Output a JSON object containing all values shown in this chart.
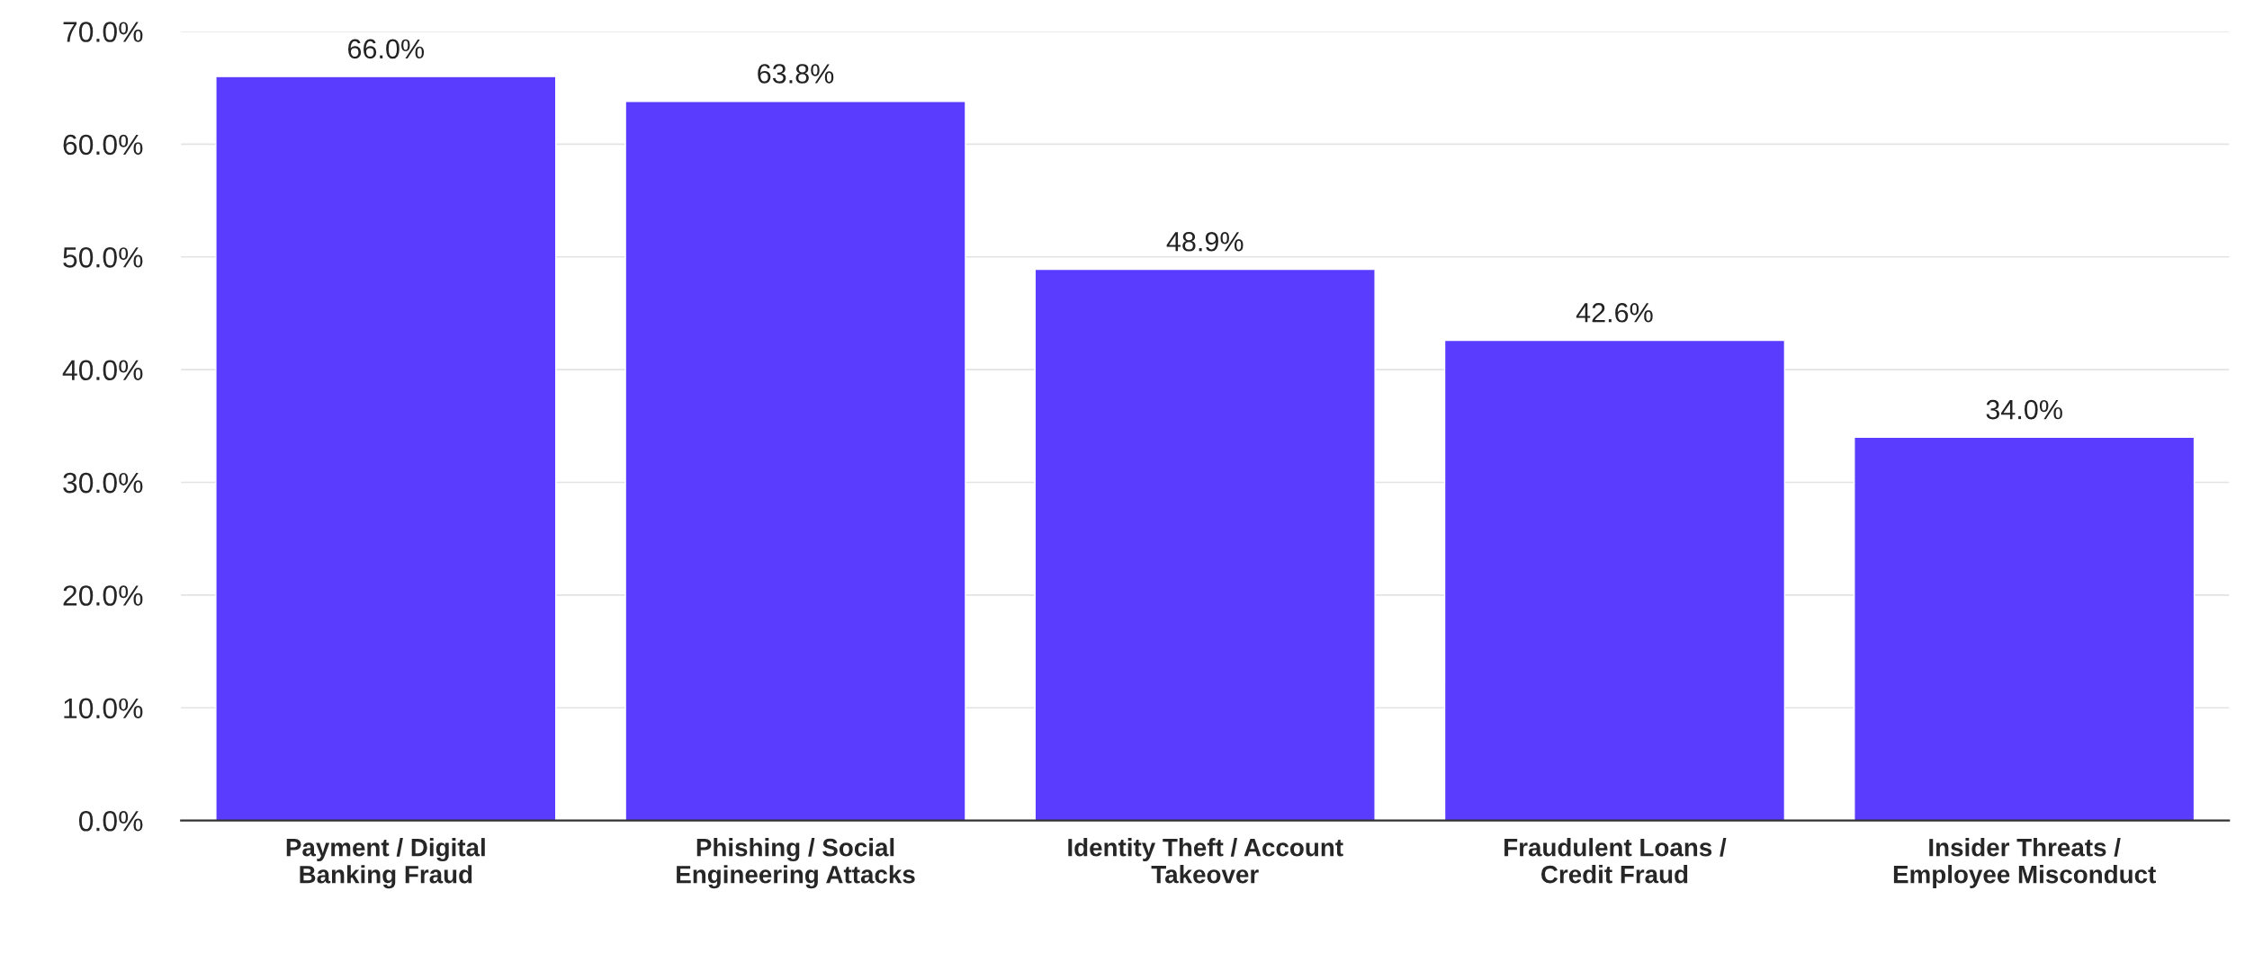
{
  "chart_data": {
    "type": "bar",
    "categories": [
      "Payment / Digital\nBanking Fraud",
      "Phishing / Social\nEngineering Attacks",
      "Identity Theft / Account\nTakeover",
      "Fraudulent Loans /\nCredit Fraud",
      "Insider Threats /\nEmployee Misconduct"
    ],
    "values": [
      66.0,
      63.8,
      48.9,
      42.6,
      34.0
    ],
    "color": "#5a3cff",
    "value_labels": [
      "66.0%",
      "63.8%",
      "48.9%",
      "42.6%",
      "34.0%"
    ],
    "ylim": [
      0,
      70
    ],
    "yticks": [
      {
        "value": 0,
        "label": "0.0%"
      },
      {
        "value": 10,
        "label": "10.0%"
      },
      {
        "value": 20,
        "label": "20.0%"
      },
      {
        "value": 30,
        "label": "30.0%"
      },
      {
        "value": 40,
        "label": "40.0%"
      },
      {
        "value": 50,
        "label": "50.0%"
      },
      {
        "value": 60,
        "label": "60.0%"
      },
      {
        "value": 70,
        "label": "70.0%"
      }
    ],
    "grid": "y"
  }
}
